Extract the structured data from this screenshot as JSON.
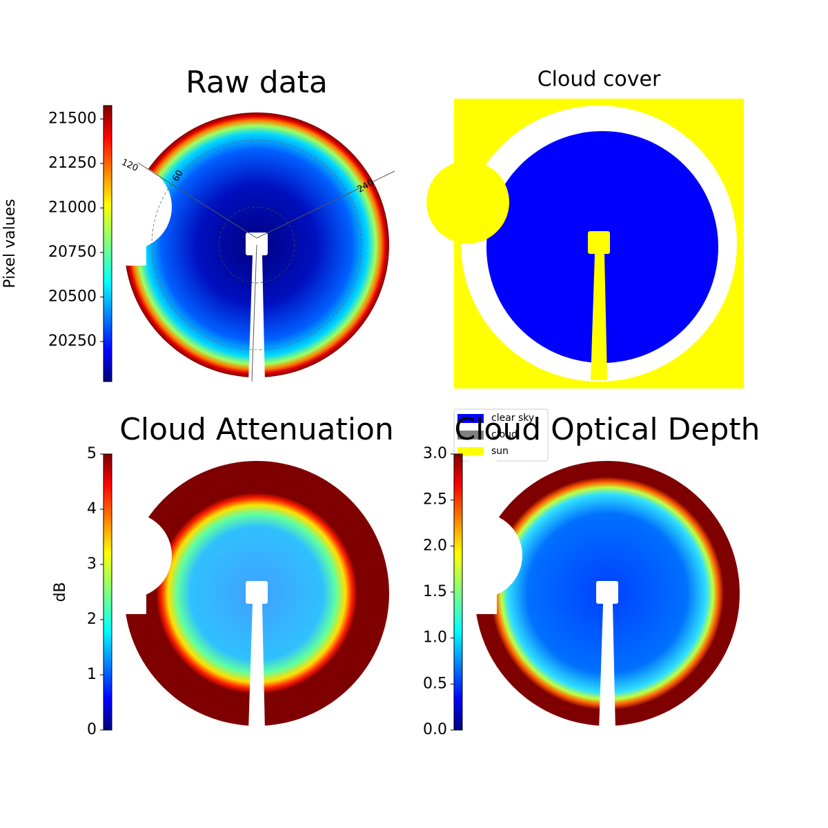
{
  "chart_data": [
    {
      "type": "image",
      "title": "Raw data",
      "colormap": "jet",
      "colorbar_label": "Pixel values",
      "ylim": [
        20025,
        21575
      ],
      "yticks": [
        20250,
        20500,
        20750,
        21000,
        21250,
        21500
      ],
      "annotations": [
        "120",
        "60",
        "240"
      ]
    },
    {
      "type": "image",
      "title": "Cloud cover",
      "legend": [
        {
          "name": "clear sky",
          "color": "#0000ff"
        },
        {
          "name": "cloud",
          "color": "#808080"
        },
        {
          "name": "sun",
          "color": "#ffff00"
        }
      ]
    },
    {
      "type": "image",
      "title": "Cloud Attenuation",
      "colormap": "jet",
      "colorbar_label": "dB",
      "ylim": [
        0,
        5
      ],
      "yticks": [
        0,
        1,
        2,
        3,
        4,
        5
      ]
    },
    {
      "type": "image",
      "title": "Cloud Optical Depth",
      "colormap": "jet",
      "ylim": [
        0,
        3
      ],
      "yticks": [
        {
          "value": 0,
          "label": "0.0"
        },
        {
          "value": 0.5,
          "label": "0.5"
        },
        {
          "value": 1,
          "label": "1.0"
        },
        {
          "value": 1.5,
          "label": "1.5"
        },
        {
          "value": 2,
          "label": "2.0"
        },
        {
          "value": 2.5,
          "label": "2.5"
        },
        {
          "value": 3,
          "label": "3.0"
        }
      ]
    }
  ]
}
